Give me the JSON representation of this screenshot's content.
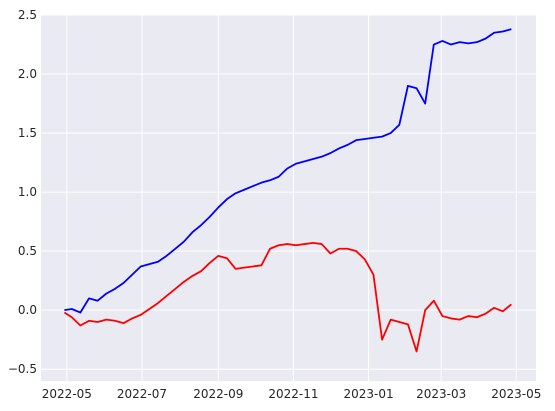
{
  "chart_data": {
    "type": "line",
    "style": "seaborn-darkgrid",
    "grid": true,
    "x_dates": [
      "2022-04-29",
      "2022-05-05",
      "2022-05-12",
      "2022-05-19",
      "2022-05-26",
      "2022-06-02",
      "2022-06-09",
      "2022-06-16",
      "2022-06-23",
      "2022-06-30",
      "2022-07-07",
      "2022-07-14",
      "2022-07-21",
      "2022-07-28",
      "2022-08-04",
      "2022-08-11",
      "2022-08-18",
      "2022-08-25",
      "2022-09-01",
      "2022-09-08",
      "2022-09-15",
      "2022-09-22",
      "2022-09-29",
      "2022-10-06",
      "2022-10-13",
      "2022-10-20",
      "2022-10-27",
      "2022-11-03",
      "2022-11-10",
      "2022-11-17",
      "2022-11-24",
      "2022-12-01",
      "2022-12-08",
      "2022-12-15",
      "2022-12-22",
      "2022-12-29",
      "2023-01-05",
      "2023-01-12",
      "2023-01-19",
      "2023-01-26",
      "2023-02-02",
      "2023-02-09",
      "2023-02-16",
      "2023-02-23",
      "2023-03-02",
      "2023-03-09",
      "2023-03-16",
      "2023-03-23",
      "2023-03-30",
      "2023-04-06",
      "2023-04-13",
      "2023-04-20",
      "2023-04-27"
    ],
    "series": [
      {
        "color": "#0000ff",
        "values": [
          0.0,
          0.01,
          -0.02,
          0.1,
          0.08,
          0.14,
          0.18,
          0.23,
          0.3,
          0.37,
          0.39,
          0.41,
          0.46,
          0.52,
          0.58,
          0.66,
          0.72,
          0.79,
          0.87,
          0.94,
          0.99,
          1.02,
          1.05,
          1.08,
          1.1,
          1.13,
          1.2,
          1.24,
          1.26,
          1.28,
          1.3,
          1.33,
          1.37,
          1.4,
          1.44,
          1.45,
          1.46,
          1.47,
          1.5,
          1.57,
          1.9,
          1.88,
          1.75,
          2.25,
          2.28,
          2.25,
          2.27,
          2.26,
          2.27,
          2.3,
          2.35,
          2.36,
          2.38
        ]
      },
      {
        "color": "#ff0000",
        "values": [
          -0.02,
          -0.06,
          -0.13,
          -0.09,
          -0.1,
          -0.08,
          -0.09,
          -0.11,
          -0.07,
          -0.04,
          0.01,
          0.06,
          0.12,
          0.18,
          0.24,
          0.29,
          0.33,
          0.4,
          0.46,
          0.44,
          0.35,
          0.36,
          0.37,
          0.38,
          0.52,
          0.55,
          0.56,
          0.55,
          0.56,
          0.57,
          0.56,
          0.48,
          0.52,
          0.52,
          0.5,
          0.43,
          0.3,
          -0.25,
          -0.08,
          -0.1,
          -0.12,
          -0.35,
          0.0,
          0.08,
          -0.05,
          -0.07,
          -0.08,
          -0.05,
          -0.06,
          -0.03,
          0.02,
          -0.01,
          0.05
        ]
      }
    ],
    "x_ticks": [
      "2022-05",
      "2022-07",
      "2022-09",
      "2022-11",
      "2023-01",
      "2023-03",
      "2023-05"
    ],
    "y_ticks": [
      "−0.5",
      "0.0",
      "0.5",
      "1.0",
      "1.5",
      "2.0",
      "2.5"
    ],
    "xlim": [
      "2022-04-10",
      "2023-05-17"
    ],
    "ylim": [
      -0.6,
      2.5
    ]
  }
}
